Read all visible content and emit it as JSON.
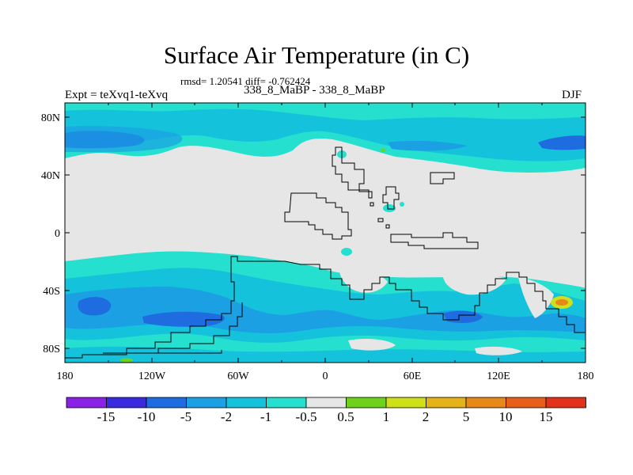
{
  "title": "Surface Air Temperature (in C)",
  "stats": "rmsd= 1.20541 diff= -0.762424",
  "subtitle_center": "338_8_MaBP - 338_8_MaBP",
  "subtitle_left": "Expt = teXvq1-teXvq",
  "subtitle_right": "DJF",
  "lat_labels": [
    "80N",
    "40N",
    "0",
    "40S",
    "80S"
  ],
  "lon_labels": [
    "180",
    "120W",
    "60W",
    "0",
    "60E",
    "120E",
    "180"
  ],
  "colorbar": {
    "colors": [
      "#8a22e6",
      "#3a2adf",
      "#1f6be0",
      "#1aa0e3",
      "#14c2dc",
      "#25dfcf",
      "#e6e6e6",
      "#6fd21a",
      "#cfe01a",
      "#e6b21a",
      "#e6891a",
      "#e6601a",
      "#e2321a"
    ],
    "labels": [
      "-15",
      "-10",
      "-5",
      "-2",
      "-1",
      "-0.5",
      "0.5",
      "1",
      "2",
      "5",
      "10",
      "15"
    ]
  },
  "legend_colors": {
    "gray_near_zero": "#e6e6e6",
    "cyan": "#25dfcf",
    "light_blue": "#14c2dc",
    "mid_blue": "#1aa0e3",
    "blue": "#1f6be0",
    "yellow": "#cfe01a",
    "orange": "#e6891a"
  }
}
